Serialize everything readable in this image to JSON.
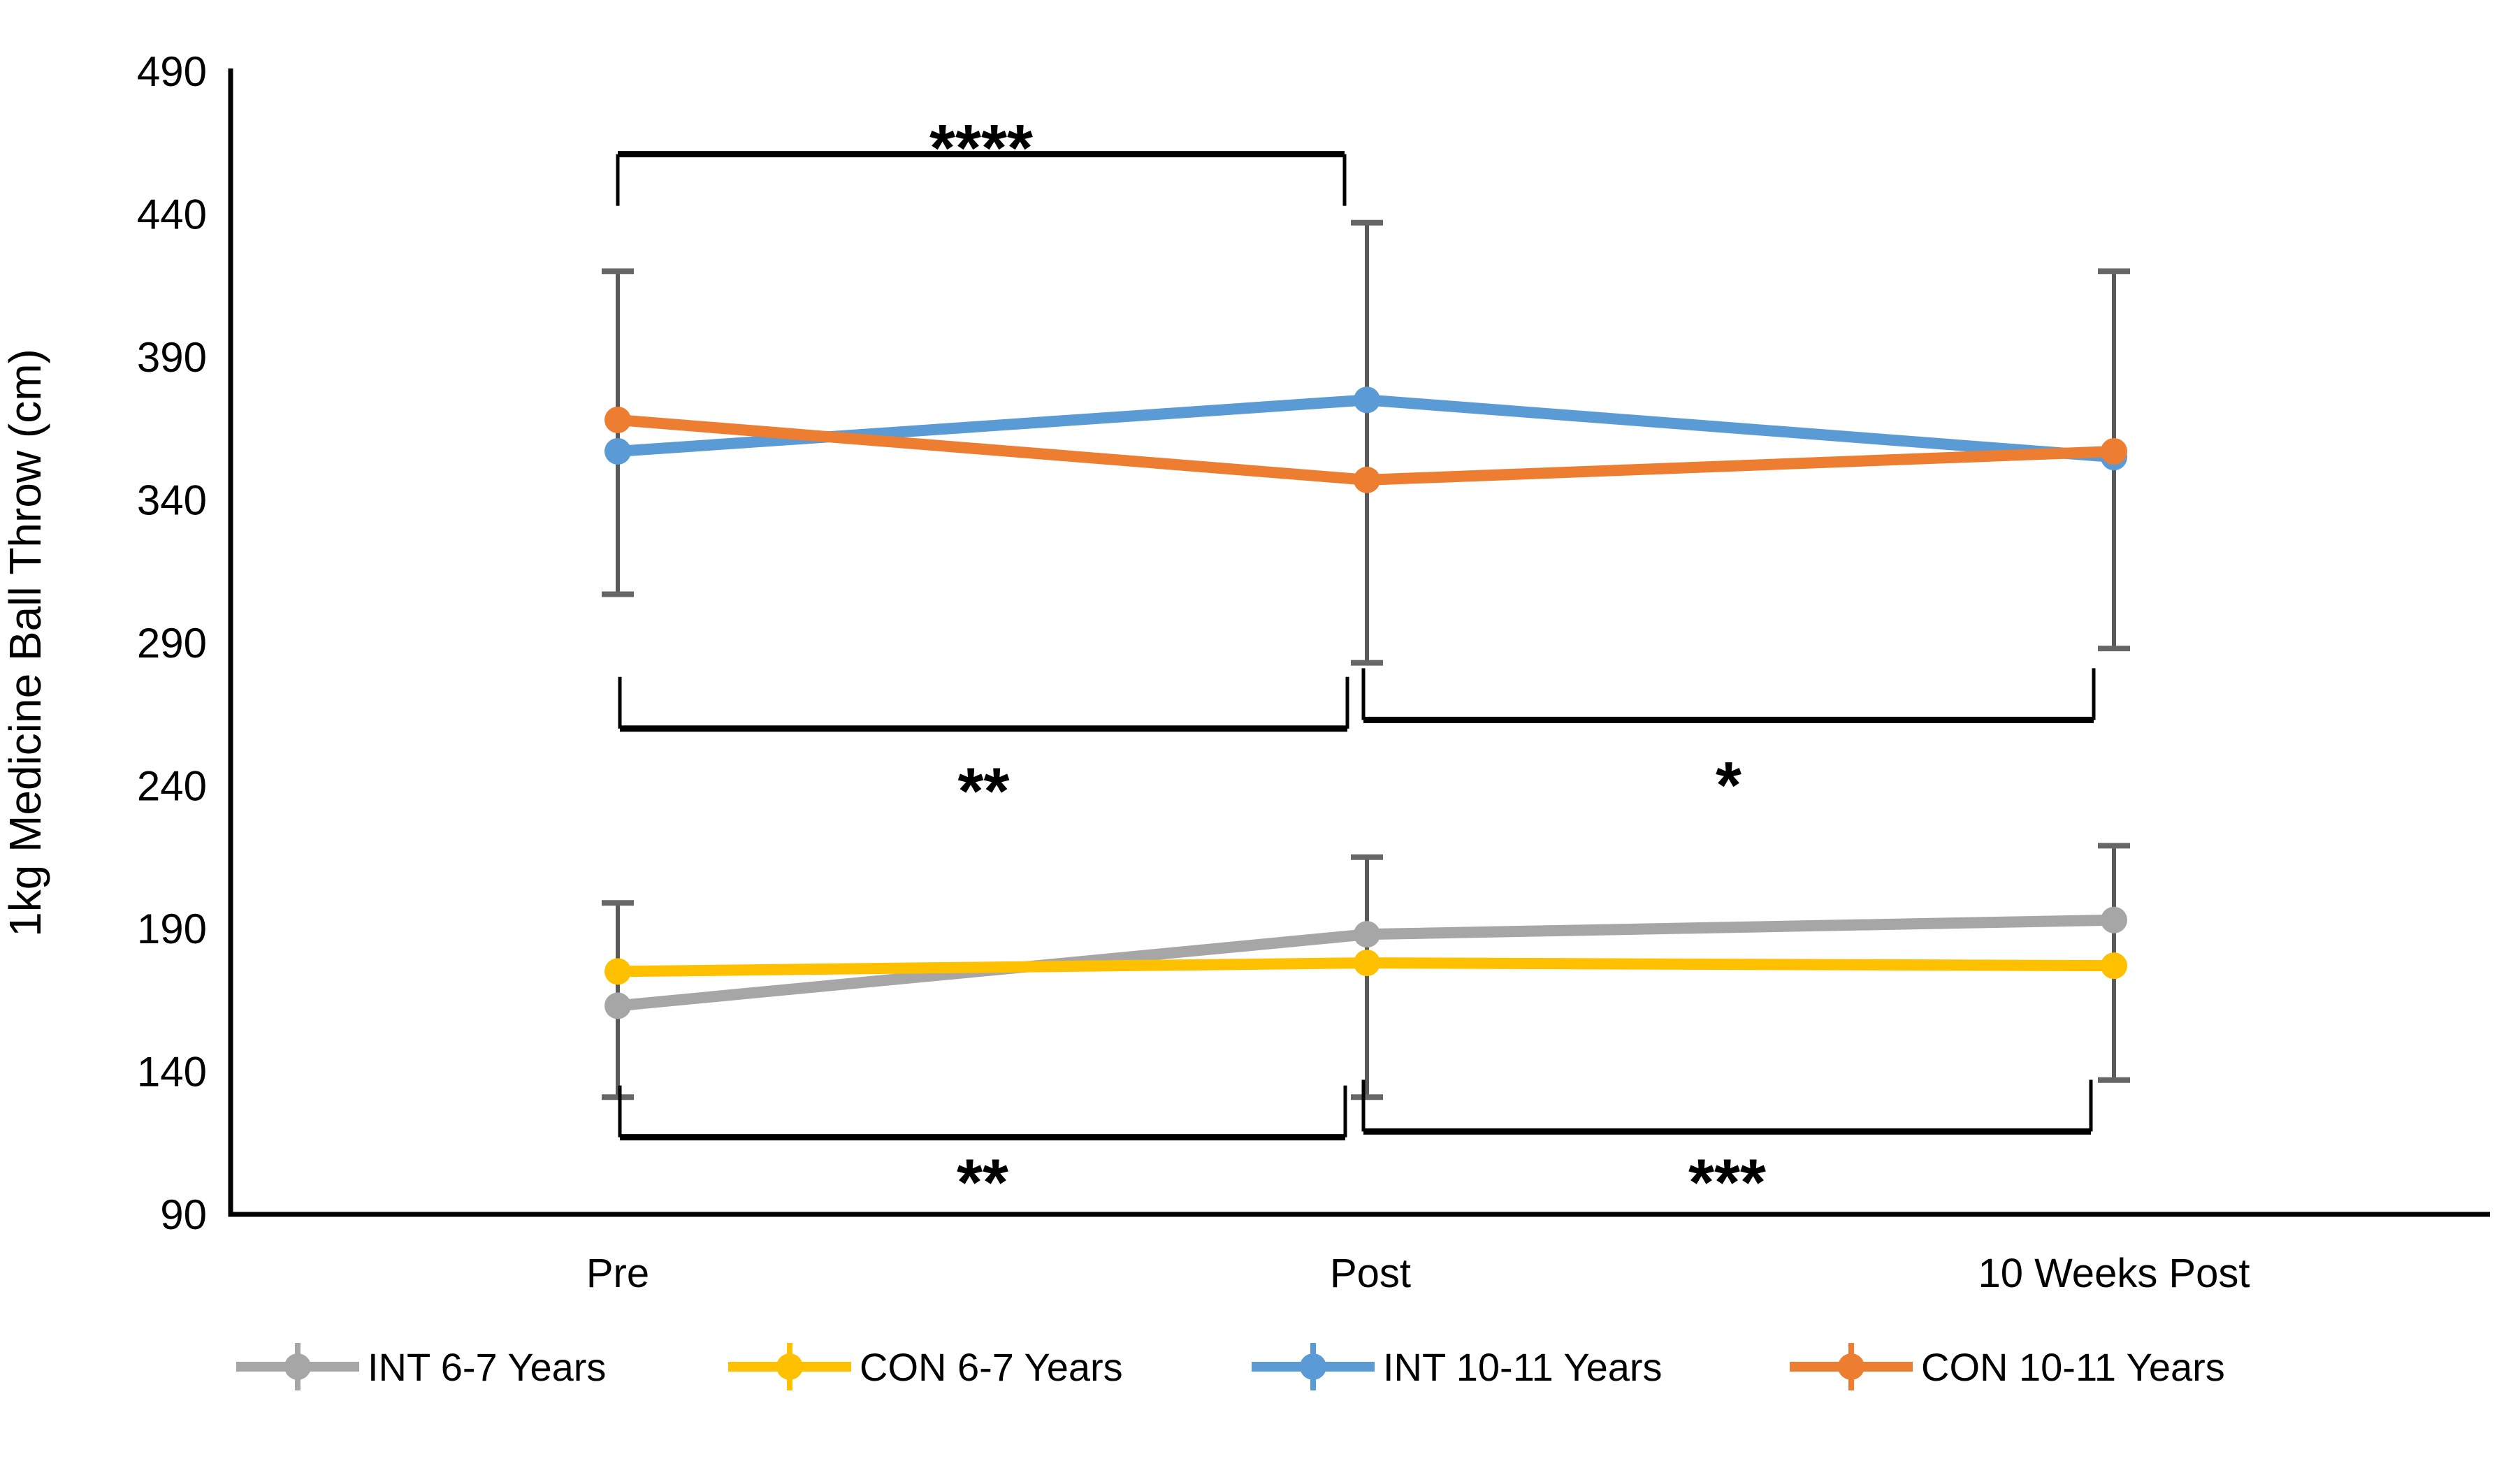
{
  "figure": {
    "y_axis_title": "1kg Medicine Ball Throw (cm)"
  },
  "chart_data": {
    "type": "line",
    "title": "",
    "xlabel": "",
    "ylabel": "1kg Medicine Ball Throw (cm)",
    "ylim": [
      90,
      490
    ],
    "ytick_step": 50,
    "y_ticks": [
      490,
      440,
      390,
      340,
      290,
      240,
      190,
      140,
      90
    ],
    "categories": [
      "Pre",
      "Post",
      "10 Weeks Post"
    ],
    "grid": false,
    "legend_position": "bottom",
    "series": [
      {
        "name": "INT 6-7 Years",
        "color": "#A6A6A6",
        "values": [
          163,
          188,
          193
        ]
      },
      {
        "name": "CON 6-7 Years",
        "color": "#FFC000",
        "values": [
          175,
          178,
          177
        ]
      },
      {
        "name": "INT 10-11 Years",
        "color": "#5B9BD5",
        "values": [
          357,
          375,
          355
        ]
      },
      {
        "name": "CON 10-11 Years",
        "color": "#ED7D31",
        "values": [
          368,
          347,
          357
        ]
      }
    ],
    "error_bars": [
      {
        "category": "Pre",
        "group": "10-11 Years",
        "low": 307,
        "high": 420
      },
      {
        "category": "Post",
        "group": "10-11 Years",
        "low": 283,
        "high": 437
      },
      {
        "category": "10 Weeks Post",
        "group": "10-11 Years",
        "low": 288,
        "high": 420
      },
      {
        "category": "Pre",
        "group": "6-7 Years",
        "low": 131,
        "high": 199
      },
      {
        "category": "Post",
        "group": "6-7 Years",
        "low": 131,
        "high": 215
      },
      {
        "category": "10 Weeks Post",
        "group": "6-7 Years",
        "low": 137,
        "high": 219
      }
    ],
    "significance_brackets": [
      {
        "from": "Pre",
        "to": "Post",
        "stars": "****",
        "y": 461,
        "legs": "down",
        "star_y": 467,
        "x1_off": 0,
        "x2_off": -32
      },
      {
        "from": "Pre",
        "to": "Post",
        "stars": "**",
        "y": 260,
        "legs": "up",
        "star_y": 242,
        "x1_off": 3,
        "x2_off": -28
      },
      {
        "from": "Post",
        "to": "10 Weeks Post",
        "stars": "*",
        "y": 263,
        "legs": "up",
        "star_y": 244,
        "x1_off": -5,
        "x2_off": -29
      },
      {
        "from": "Pre",
        "to": "Post",
        "stars": "**",
        "y": 117,
        "legs": "up",
        "star_y": 105,
        "x1_off": 3,
        "x2_off": -31
      },
      {
        "from": "Post",
        "to": "10 Weeks Post",
        "stars": "***",
        "y": 119,
        "legs": "up",
        "star_y": 105,
        "x1_off": -5,
        "x2_off": -33
      }
    ],
    "colors": {
      "axis": "#000000",
      "error_bar": "#595959",
      "error_bar_cap": "#666666",
      "bracket": "#000000",
      "text": "#000000"
    }
  }
}
